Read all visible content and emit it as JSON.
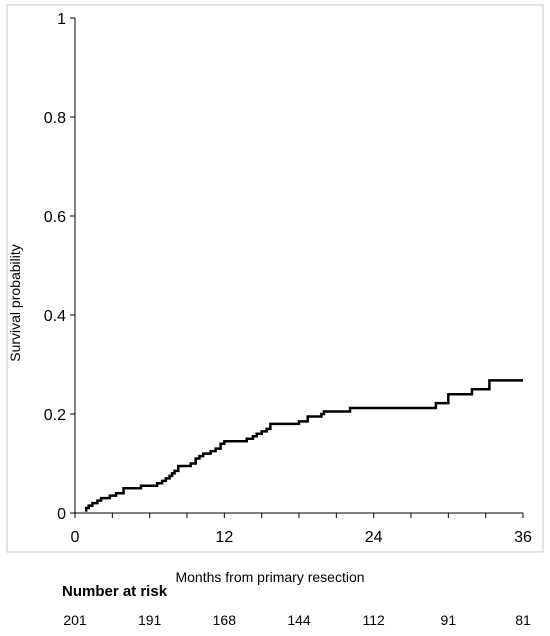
{
  "chart_data": {
    "type": "line",
    "step": true,
    "xlabel": "Months from primary resection",
    "ylabel": "Survival probability",
    "xlim": [
      0,
      36
    ],
    "ylim": [
      0,
      1
    ],
    "x_ticks": [
      0,
      12,
      24,
      36
    ],
    "x_tick_labels": [
      "0",
      "12",
      "24",
      "36"
    ],
    "y_ticks": [
      0,
      0.2,
      0.4,
      0.6,
      0.8,
      1
    ],
    "y_tick_labels": [
      "0",
      "0.2",
      "0.4",
      "0.6",
      "0.8",
      "1"
    ],
    "grid": false,
    "series": [
      {
        "color": "#000000",
        "points": [
          [
            0.8,
            0.005
          ],
          [
            0.9,
            0.01
          ],
          [
            1.1,
            0.015
          ],
          [
            1.4,
            0.02
          ],
          [
            1.8,
            0.025
          ],
          [
            2.1,
            0.03
          ],
          [
            2.8,
            0.035
          ],
          [
            3.3,
            0.04
          ],
          [
            3.9,
            0.05
          ],
          [
            5.3,
            0.055
          ],
          [
            6.6,
            0.06
          ],
          [
            7.0,
            0.065
          ],
          [
            7.3,
            0.07
          ],
          [
            7.6,
            0.075
          ],
          [
            7.8,
            0.08
          ],
          [
            8.0,
            0.085
          ],
          [
            8.3,
            0.095
          ],
          [
            9.3,
            0.1
          ],
          [
            9.7,
            0.11
          ],
          [
            10.0,
            0.115
          ],
          [
            10.3,
            0.12
          ],
          [
            10.9,
            0.125
          ],
          [
            11.3,
            0.13
          ],
          [
            11.7,
            0.14
          ],
          [
            12.0,
            0.145
          ],
          [
            13.8,
            0.15
          ],
          [
            14.3,
            0.155
          ],
          [
            14.6,
            0.16
          ],
          [
            15.0,
            0.165
          ],
          [
            15.4,
            0.17
          ],
          [
            15.7,
            0.18
          ],
          [
            18.0,
            0.185
          ],
          [
            18.7,
            0.195
          ],
          [
            19.8,
            0.2
          ],
          [
            20.0,
            0.205
          ],
          [
            22.1,
            0.212
          ],
          [
            29.0,
            0.222
          ],
          [
            30.0,
            0.24
          ],
          [
            31.9,
            0.25
          ],
          [
            33.3,
            0.268
          ],
          [
            36.0,
            0.268
          ]
        ]
      }
    ]
  },
  "number_at_risk": {
    "title": "Number at risk",
    "values": [
      "201",
      "191",
      "168",
      "144",
      "112",
      "91",
      "81"
    ]
  }
}
